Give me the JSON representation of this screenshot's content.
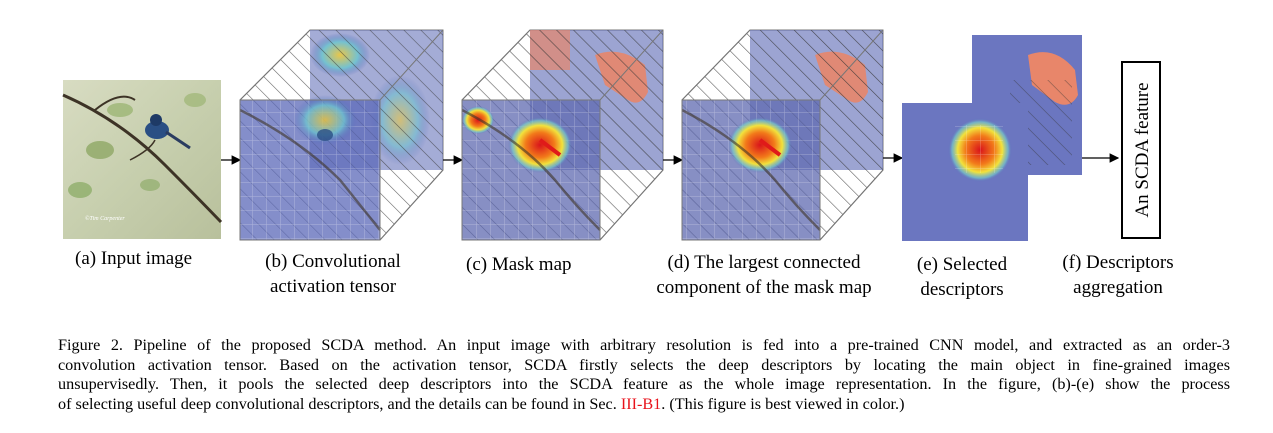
{
  "figure": {
    "stages": [
      {
        "id": "a",
        "lines": [
          "(a) Input image"
        ]
      },
      {
        "id": "b",
        "lines": [
          "(b) Convolutional",
          "activation tensor"
        ]
      },
      {
        "id": "c",
        "lines": [
          "(c) Mask map"
        ]
      },
      {
        "id": "d",
        "lines": [
          "(d) The largest connected",
          "component of the mask map"
        ]
      },
      {
        "id": "e",
        "lines": [
          "(e) Selected",
          "descriptors"
        ]
      },
      {
        "id": "f",
        "lines": [
          "(f) Descriptors",
          "aggregation"
        ]
      }
    ],
    "feature_box_label": "An SCDA feature",
    "watermark": "©Tim Carpenter"
  },
  "caption": {
    "line1": "Figure 2.  Pipeline of the proposed SCDA method. An input image with arbitrary resolution is fed into a pre-trained CNN model, and extracted as an order-3",
    "line2": "convolution activation tensor. Based on the activation tensor, SCDA firstly selects the deep descriptors by locating the main object in fine-grained images",
    "line3": "unsupervisedly. Then, it pools the selected deep descriptors into the SCDA feature as the whole image representation. In the figure, (b)-(e) show the process",
    "line4_before": "of selecting useful deep convolutional descriptors, and the details can be found in Sec. ",
    "line4_ref": "III-B1",
    "line4_after": ". (This figure is best viewed in color.)"
  }
}
